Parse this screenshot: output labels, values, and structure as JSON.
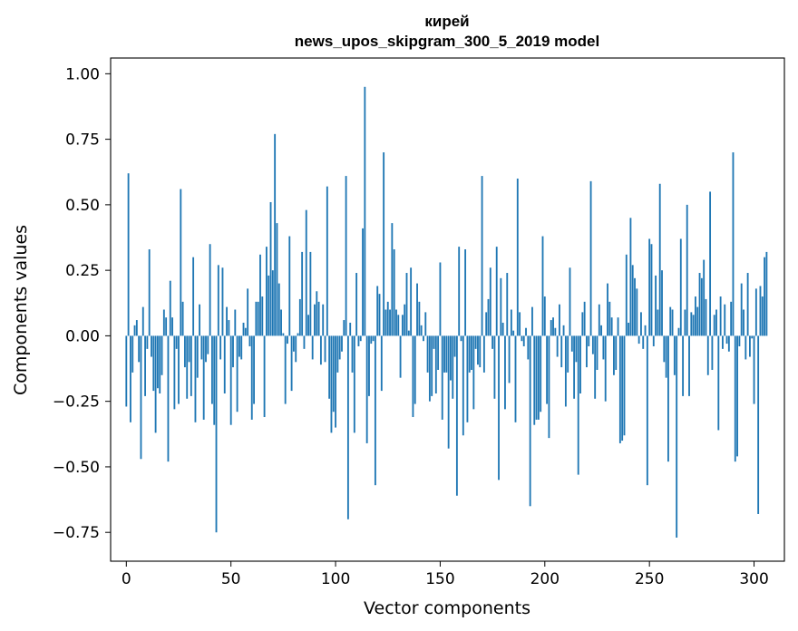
{
  "chart_data": {
    "type": "bar",
    "title_line1": "кирей",
    "title_line2": "news_upos_skipgram_300_5_2019 model",
    "xlabel": "Vector components",
    "ylabel": "Components values",
    "xlim": [
      -7.5,
      314.5
    ],
    "ylim": [
      -0.86,
      1.06
    ],
    "xticks": [
      0,
      50,
      100,
      150,
      200,
      250,
      300
    ],
    "xtick_labels": [
      "0",
      "50",
      "100",
      "150",
      "200",
      "250",
      "300"
    ],
    "yticks": [
      -0.75,
      -0.5,
      -0.25,
      0.0,
      0.25,
      0.5,
      0.75,
      1.0
    ],
    "ytick_labels": [
      "−0.75",
      "−0.50",
      "−0.25",
      "0.00",
      "0.25",
      "0.50",
      "0.75",
      "1.00"
    ],
    "bar_color": "#1f77b4",
    "grid": false,
    "values": [
      -0.27,
      0.62,
      -0.33,
      -0.14,
      0.04,
      0.06,
      -0.1,
      -0.47,
      0.11,
      -0.23,
      -0.05,
      0.33,
      -0.08,
      -0.21,
      -0.37,
      -0.2,
      -0.22,
      -0.15,
      0.1,
      0.07,
      -0.48,
      0.21,
      0.07,
      -0.28,
      -0.05,
      -0.26,
      0.56,
      0.13,
      -0.12,
      -0.24,
      -0.1,
      -0.23,
      0.3,
      -0.33,
      -0.16,
      0.12,
      -0.09,
      -0.32,
      -0.1,
      -0.07,
      0.35,
      -0.26,
      -0.34,
      -0.75,
      0.27,
      -0.09,
      0.26,
      -0.22,
      0.11,
      0.06,
      -0.34,
      -0.12,
      0.1,
      -0.29,
      -0.08,
      -0.09,
      0.05,
      0.03,
      0.18,
      -0.04,
      -0.32,
      -0.26,
      0.13,
      0.13,
      0.31,
      0.15,
      -0.31,
      0.34,
      0.23,
      0.51,
      0.25,
      0.77,
      0.43,
      0.2,
      0.1,
      0.01,
      -0.26,
      -0.03,
      0.38,
      -0.21,
      -0.06,
      -0.1,
      0.01,
      0.14,
      0.32,
      -0.05,
      0.48,
      0.08,
      0.32,
      -0.09,
      0.12,
      0.17,
      0.13,
      -0.11,
      0.12,
      -0.1,
      0.57,
      -0.24,
      -0.37,
      -0.29,
      -0.35,
      -0.14,
      -0.09,
      -0.06,
      0.06,
      0.61,
      -0.7,
      0.05,
      -0.14,
      -0.37,
      0.24,
      -0.04,
      -0.02,
      0.41,
      0.95,
      -0.41,
      -0.23,
      -0.03,
      -0.02,
      -0.57,
      0.19,
      0.16,
      -0.21,
      0.7,
      0.1,
      0.13,
      0.1,
      0.43,
      0.33,
      0.1,
      0.08,
      -0.16,
      0.08,
      0.12,
      0.24,
      0.02,
      0.26,
      -0.31,
      -0.26,
      0.2,
      0.13,
      0.04,
      -0.02,
      0.09,
      -0.14,
      -0.25,
      -0.23,
      -0.05,
      -0.22,
      -0.13,
      0.28,
      -0.32,
      -0.14,
      -0.14,
      -0.43,
      -0.17,
      -0.24,
      -0.08,
      -0.61,
      0.34,
      -0.02,
      -0.38,
      0.33,
      -0.33,
      -0.14,
      -0.13,
      -0.28,
      -0.05,
      -0.11,
      -0.12,
      0.61,
      -0.14,
      0.09,
      0.14,
      0.26,
      -0.05,
      -0.24,
      0.34,
      -0.55,
      0.22,
      0.05,
      -0.28,
      0.24,
      -0.18,
      0.1,
      0.02,
      -0.33,
      0.6,
      0.09,
      -0.02,
      -0.04,
      0.03,
      -0.09,
      -0.65,
      0.11,
      -0.34,
      -0.32,
      -0.32,
      -0.29,
      0.38,
      0.15,
      -0.26,
      -0.39,
      0.06,
      0.07,
      0.03,
      -0.08,
      0.12,
      -0.12,
      0.04,
      -0.27,
      -0.14,
      0.26,
      -0.06,
      -0.24,
      -0.1,
      -0.53,
      -0.22,
      0.09,
      0.13,
      -0.12,
      -0.04,
      0.59,
      -0.07,
      -0.24,
      -0.13,
      0.12,
      0.04,
      -0.09,
      -0.25,
      0.2,
      0.13,
      0.07,
      -0.15,
      -0.13,
      0.07,
      -0.41,
      -0.4,
      -0.38,
      0.31,
      0.05,
      0.45,
      0.27,
      0.22,
      0.18,
      -0.03,
      0.09,
      -0.05,
      0.04,
      -0.57,
      0.37,
      0.35,
      -0.04,
      0.23,
      0.1,
      0.58,
      0.25,
      -0.1,
      -0.16,
      -0.48,
      0.11,
      0.1,
      -0.15,
      -0.77,
      0.03,
      0.37,
      -0.23,
      0.1,
      0.5,
      -0.23,
      0.09,
      0.08,
      0.15,
      0.11,
      0.24,
      0.22,
      0.29,
      0.14,
      -0.15,
      0.55,
      -0.13,
      0.08,
      0.1,
      -0.36,
      0.15,
      -0.05,
      0.12,
      -0.03,
      -0.06,
      0.13,
      0.7,
      -0.48,
      -0.46,
      -0.04,
      0.2,
      0.1,
      -0.09,
      0.24,
      -0.08,
      -0.01,
      -0.26,
      0.18,
      -0.68,
      0.19,
      0.15,
      0.3,
      0.32
    ]
  }
}
